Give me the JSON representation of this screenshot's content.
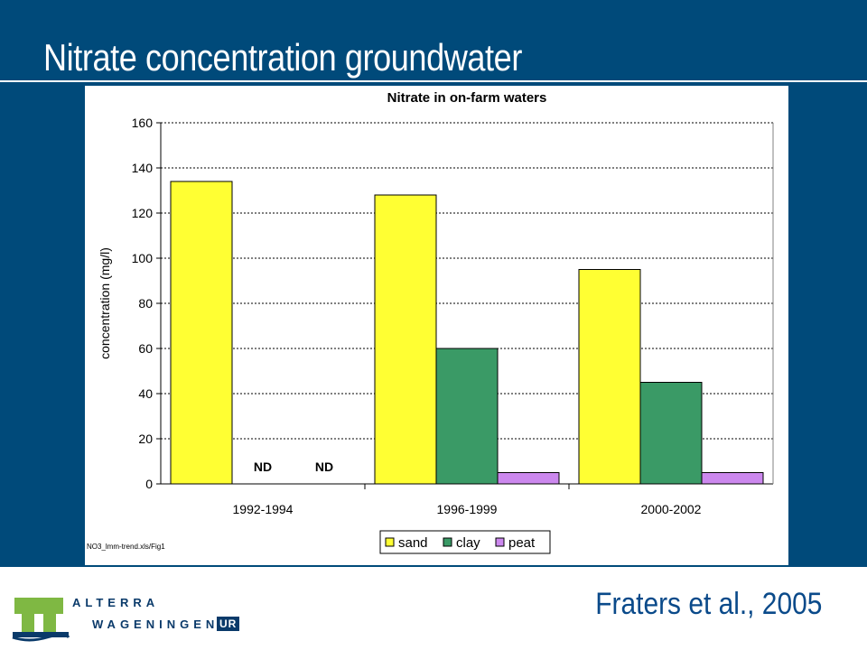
{
  "slide": {
    "title": "Nitrate concentration groundwater",
    "citation": "Fraters et al., 2005",
    "background_color": "#004a7a"
  },
  "logo": {
    "name": "ALTERRA",
    "subtitle": "WAGENINGEN",
    "badge": "UR"
  },
  "chart_data": {
    "type": "bar",
    "title": "Nitrate in on-farm waters",
    "xlabel": "",
    "ylabel": "concentration (mg/l)",
    "ylim": [
      0,
      160
    ],
    "yticks": [
      0,
      20,
      40,
      60,
      80,
      100,
      120,
      140,
      160
    ],
    "categories": [
      "1992-1994",
      "1996-1999",
      "2000-2002"
    ],
    "series": [
      {
        "name": "sand",
        "color": "#ffff33",
        "values": [
          134,
          128,
          95
        ]
      },
      {
        "name": "clay",
        "color": "#3a9a66",
        "values": [
          null,
          60,
          45
        ]
      },
      {
        "name": "peat",
        "color": "#cc88ee",
        "values": [
          null,
          5,
          5
        ]
      }
    ],
    "annotations": [
      {
        "category": "1992-1994",
        "series": "clay",
        "text": "ND"
      },
      {
        "category": "1992-1994",
        "series": "peat",
        "text": "ND"
      }
    ],
    "grid": true,
    "legend_position": "bottom",
    "source_note": "NO3_lmm-trend.xls/Fig1"
  }
}
